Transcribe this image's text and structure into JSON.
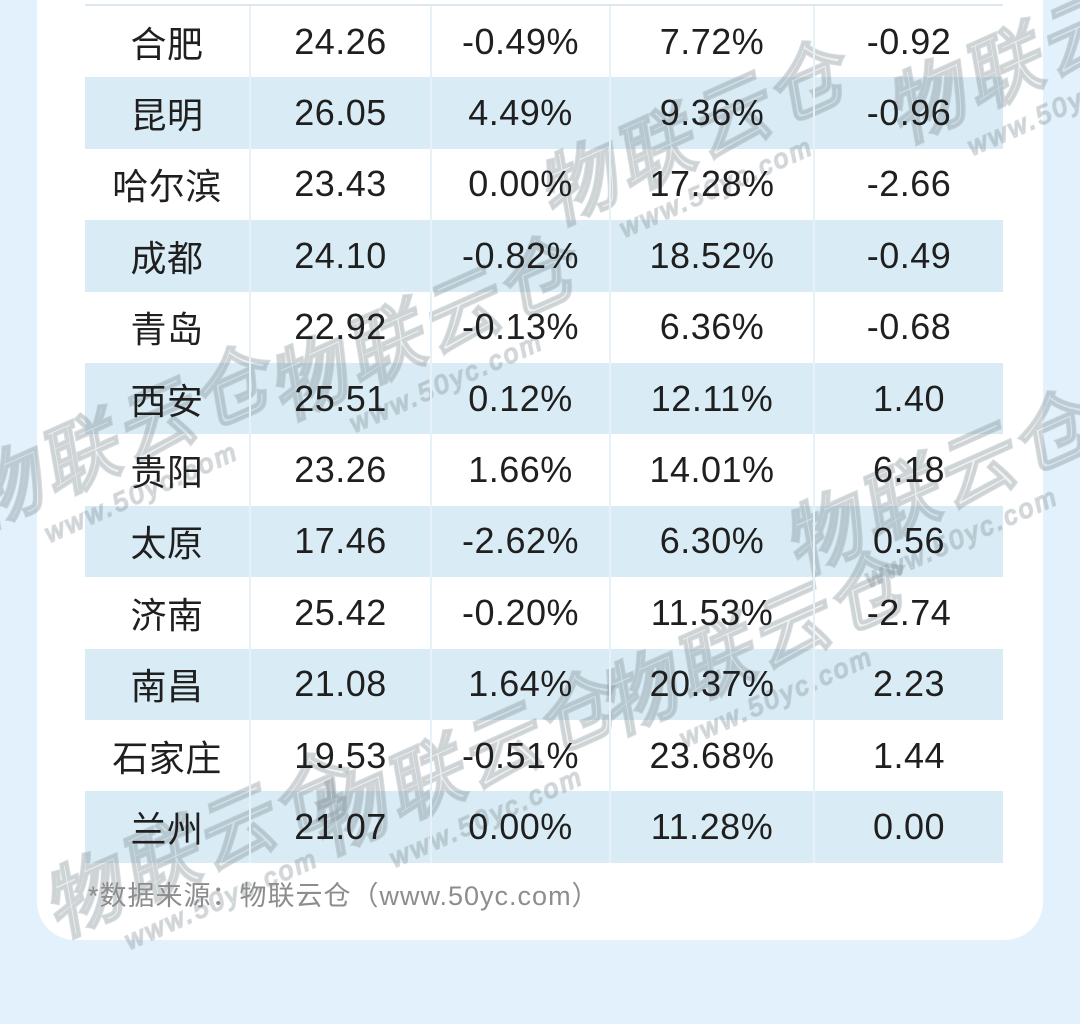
{
  "chart_data": {
    "type": "table",
    "rows": [
      [
        "合肥",
        "24.26",
        "-0.49%",
        "7.72%",
        "-0.92"
      ],
      [
        "昆明",
        "26.05",
        "4.49%",
        "9.36%",
        "-0.96"
      ],
      [
        "哈尔滨",
        "23.43",
        "0.00%",
        "17.28%",
        "-2.66"
      ],
      [
        "成都",
        "24.10",
        "-0.82%",
        "18.52%",
        "-0.49"
      ],
      [
        "青岛",
        "22.92",
        "-0.13%",
        "6.36%",
        "-0.68"
      ],
      [
        "西安",
        "25.51",
        "0.12%",
        "12.11%",
        "1.40"
      ],
      [
        "贵阳",
        "23.26",
        "1.66%",
        "14.01%",
        "6.18"
      ],
      [
        "太原",
        "17.46",
        "-2.62%",
        "6.30%",
        "0.56"
      ],
      [
        "济南",
        "25.42",
        "-0.20%",
        "11.53%",
        "-2.74"
      ],
      [
        "南昌",
        "21.08",
        "1.64%",
        "20.37%",
        "2.23"
      ],
      [
        "石家庄",
        "19.53",
        "-0.51%",
        "23.68%",
        "1.44"
      ],
      [
        "兰州",
        "21.07",
        "0.00%",
        "11.28%",
        "0.00"
      ]
    ],
    "title": "",
    "legend": [],
    "grid": "zebra-striped rows, light column separators"
  },
  "footer": {
    "source_note": "*数据来源：物联云仓（www.50yc.com）"
  },
  "watermark": {
    "brand": "物联云仓",
    "url": "www.50yc.com"
  },
  "colors": {
    "outer_background": "#e2f1fb",
    "card_background": "#ffffff",
    "row_stripe": "#d9ecf5",
    "column_separator": "#e6f1f8",
    "cell_text": "#1f1f1f",
    "footer_text": "#8d8d8d",
    "watermark_gray": "#828e96"
  }
}
